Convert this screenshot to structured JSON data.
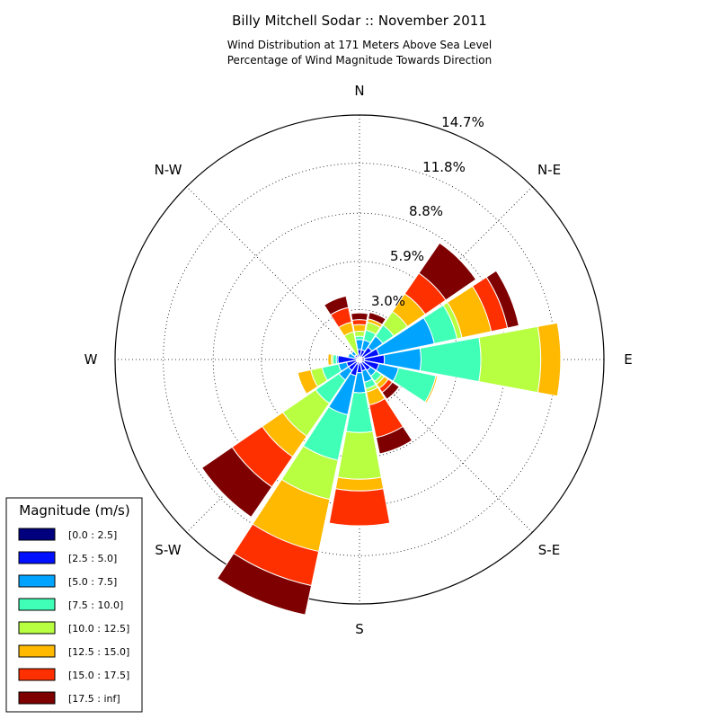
{
  "chart_data": {
    "type": "windrose",
    "title": "Billy Mitchell Sodar :: November 2011",
    "subtitle_lines": [
      "Wind Distribution at 171 Meters Above Sea Level",
      "Percentage of Wind Magnitude Towards Direction"
    ],
    "direction_labels": [
      "N",
      "N-E",
      "E",
      "S-E",
      "S",
      "S-W",
      "W",
      "N-W"
    ],
    "radial_ticks": [
      {
        "value": 3.0,
        "label": "3.0%"
      },
      {
        "value": 5.9,
        "label": "5.9%"
      },
      {
        "value": 8.8,
        "label": "8.8%"
      },
      {
        "value": 11.8,
        "label": "11.8%"
      },
      {
        "value": 14.7,
        "label": "14.7%"
      }
    ],
    "r_max": 14.7,
    "grid": true,
    "legend": {
      "title": "Magnitude (m/s)",
      "placement": "lower-left",
      "entries": [
        "[0.0 : 2.5]",
        "[2.5 : 5.0]",
        "[5.0 : 7.5]",
        "[7.5 : 10.0]",
        "[10.0 : 12.5]",
        "[12.5 : 15.0]",
        "[15.0 : 17.5]",
        "[17.5 : inf]"
      ]
    },
    "bin_colors": [
      "#00007f",
      "#0010ff",
      "#00a4ff",
      "#40ffb7",
      "#b7ff40",
      "#ffb900",
      "#ff3000",
      "#7f0000"
    ],
    "sector_unit": "degrees clockwise from N",
    "sectors": [
      {
        "angle": 0,
        "cumulative": [
          0.15,
          0.6,
          1.2,
          1.4,
          1.7,
          2.1,
          2.4,
          2.8
        ]
      },
      {
        "angle": 22.5,
        "cumulative": [
          0.15,
          0.6,
          1.2,
          1.8,
          2.3,
          2.5,
          2.5,
          2.9
        ]
      },
      {
        "angle": 45,
        "cumulative": [
          0.2,
          0.9,
          1.7,
          2.5,
          3.5,
          4.8,
          6.3,
          8.5
        ]
      },
      {
        "angle": 67.5,
        "cumulative": [
          0.3,
          1.2,
          4.6,
          6.0,
          6.3,
          8.1,
          9.1,
          9.8
        ]
      },
      {
        "angle": 90,
        "cumulative": [
          0.3,
          1.5,
          3.7,
          7.3,
          10.9,
          12.1,
          12.1,
          12.1
        ]
      },
      {
        "angle": 112.5,
        "cumulative": [
          0.3,
          1.2,
          2.4,
          4.7,
          4.7,
          4.8,
          4.8,
          4.8
        ]
      },
      {
        "angle": 135,
        "cumulative": [
          0.2,
          0.8,
          1.2,
          1.6,
          1.8,
          2.1,
          2.4,
          2.9
        ]
      },
      {
        "angle": 157.5,
        "cumulative": [
          0.2,
          0.7,
          1.4,
          1.8,
          2.0,
          2.8,
          4.8,
          5.8
        ]
      },
      {
        "angle": 180,
        "cumulative": [
          0.2,
          0.8,
          2.0,
          4.4,
          7.2,
          7.9,
          10.0,
          10.0
        ]
      },
      {
        "angle": 202.5,
        "cumulative": [
          0.3,
          1.0,
          3.4,
          6.2,
          8.6,
          11.8,
          13.9,
          15.7
        ]
      },
      {
        "angle": 225,
        "cumulative": [
          0.2,
          0.8,
          1.5,
          3.2,
          5.6,
          7.1,
          9.3,
          11.5
        ]
      },
      {
        "angle": 247.5,
        "cumulative": [
          0.2,
          0.8,
          1.3,
          2.3,
          3.0,
          3.8,
          3.8,
          3.8
        ]
      },
      {
        "angle": 270,
        "cumulative": [
          0.2,
          1.3,
          1.4,
          1.6,
          1.7,
          1.9,
          1.9,
          1.9
        ]
      },
      {
        "angle": 292.5,
        "cumulative": [
          0.15,
          0.3,
          0.7,
          0.7,
          0.7,
          0.7,
          0.7,
          0.7
        ]
      },
      {
        "angle": 315,
        "cumulative": [
          0.15,
          0.35,
          0.6,
          0.6,
          0.6,
          0.6,
          0.6,
          0.6
        ]
      },
      {
        "angle": 337.5,
        "cumulative": [
          0.15,
          0.3,
          0.3,
          0.3,
          1.7,
          2.3,
          3.2,
          3.9
        ]
      }
    ]
  }
}
